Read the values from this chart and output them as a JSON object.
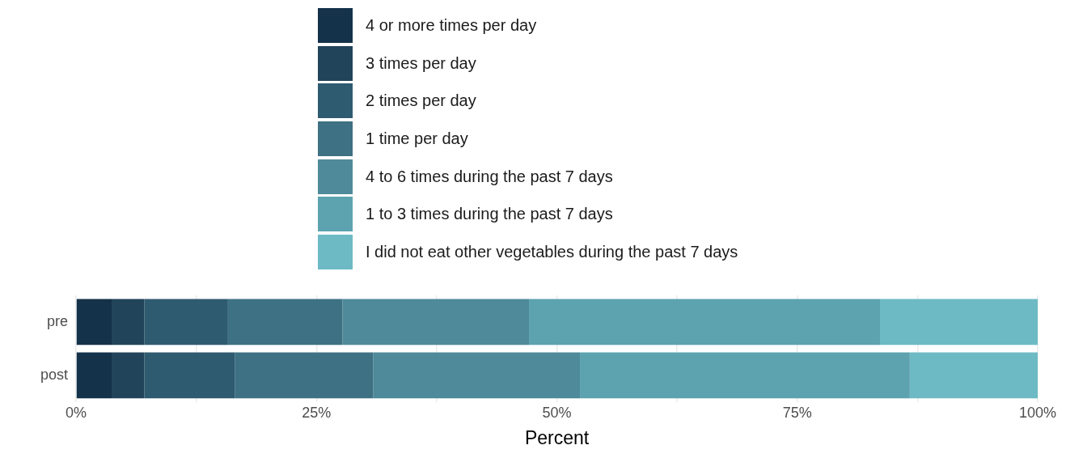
{
  "chart_data": {
    "type": "bar",
    "orientation": "horizontal",
    "stacked": true,
    "xlabel": "Percent",
    "categories": [
      "pre",
      "post"
    ],
    "series": [
      {
        "name": "4 or more times per day",
        "color": "#14324a",
        "values": [
          3.7,
          3.7
        ]
      },
      {
        "name": "3 times per day",
        "color": "#21445a",
        "values": [
          3.4,
          3.4
        ]
      },
      {
        "name": "2 times per day",
        "color": "#2f5b70",
        "values": [
          8.7,
          9.4
        ]
      },
      {
        "name": "1 time per day",
        "color": "#3e7183",
        "values": [
          11.9,
          14.4
        ]
      },
      {
        "name": "4 to 6 times during the past 7 days",
        "color": "#4e8a99",
        "values": [
          19.4,
          21.5
        ]
      },
      {
        "name": "1 to 3 times during the past 7 days",
        "color": "#5da3af",
        "values": [
          36.5,
          34.3
        ]
      },
      {
        "name": "I did not eat other vegetables during the past 7 days",
        "color": "#6dbac4",
        "values": [
          16.4,
          13.3
        ]
      }
    ],
    "xlim": [
      0,
      100
    ],
    "xticks": [
      {
        "value": 0,
        "label": "0%"
      },
      {
        "value": 12.5,
        "label": null
      },
      {
        "value": 25,
        "label": "25%"
      },
      {
        "value": 37.5,
        "label": null
      },
      {
        "value": 50,
        "label": "50%"
      },
      {
        "value": 62.5,
        "label": null
      },
      {
        "value": 75,
        "label": "75%"
      },
      {
        "value": 87.5,
        "label": null
      },
      {
        "value": 100,
        "label": "100%"
      }
    ],
    "grid": true,
    "legend": "top"
  }
}
